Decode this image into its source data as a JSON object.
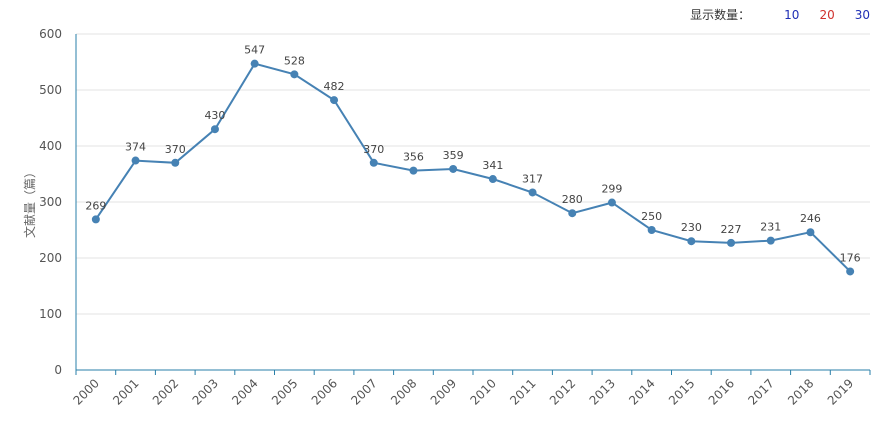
{
  "controls": {
    "label": "显示数量：",
    "options": [
      {
        "text": "10",
        "color": "#1f2fb5"
      },
      {
        "text": "20",
        "color": "#d0312d"
      },
      {
        "text": "30",
        "color": "#1f2fb5"
      }
    ]
  },
  "chart_data": {
    "type": "line",
    "ylabel": "文献量（篇）",
    "xlabel": "",
    "ylim": [
      0,
      600
    ],
    "yticks": [
      0,
      100,
      200,
      300,
      400,
      500,
      600
    ],
    "grid": true,
    "color": "#4682b4",
    "categories": [
      "2000",
      "2001",
      "2002",
      "2003",
      "2004",
      "2005",
      "2006",
      "2007",
      "2008",
      "2009",
      "2010",
      "2011",
      "2012",
      "2013",
      "2014",
      "2015",
      "2016",
      "2017",
      "2018",
      "2019"
    ],
    "values": [
      269,
      374,
      370,
      430,
      547,
      528,
      482,
      370,
      356,
      359,
      341,
      317,
      280,
      299,
      250,
      230,
      227,
      231,
      246,
      176
    ]
  }
}
